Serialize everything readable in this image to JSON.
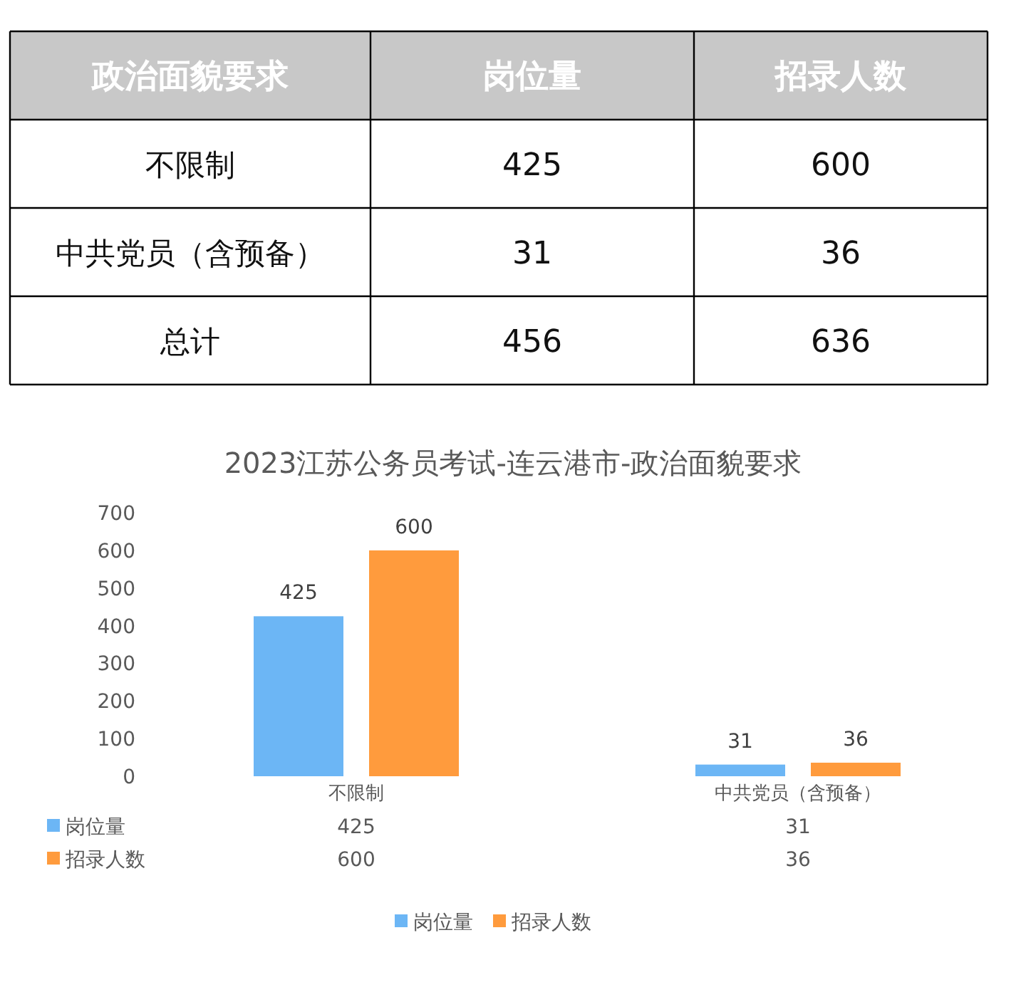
{
  "chart_data": [
    {
      "type": "other",
      "legend_title": "政治面貌要求",
      "categories": [
        "不限制",
        "中共党员（含预备）",
        "总计"
      ],
      "series": [
        {
          "name": "岗位量",
          "values": [
            425,
            31,
            456
          ]
        },
        {
          "name": "招录人数",
          "values": [
            600,
            36,
            636
          ]
        }
      ],
      "data_labels": true
    },
    {
      "type": "bar",
      "title": "2023江苏公务员考试-连云港市-政治面貌要求",
      "categories": [
        "不限制",
        "中共党员（含预备）"
      ],
      "series": [
        {
          "name": "岗位量",
          "color": "#6cb6f5",
          "values": [
            425,
            31
          ]
        },
        {
          "name": "招录人数",
          "color": "#ff9b3d",
          "values": [
            600,
            36
          ]
        }
      ],
      "annotations": [
        "425",
        "600",
        "31",
        "36"
      ],
      "ylim": [
        0,
        700
      ],
      "yticks": [
        0,
        100,
        200,
        300,
        400,
        500,
        600,
        700
      ],
      "grid": false,
      "legend": "bottom",
      "data_labels": true
    }
  ]
}
